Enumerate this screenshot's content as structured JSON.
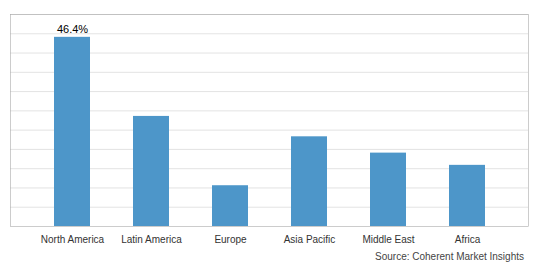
{
  "chart_data": {
    "type": "bar",
    "categories": [
      "North America",
      "Latin America",
      "Europe",
      "Asia Pacific",
      "Middle East",
      "Africa"
    ],
    "values": [
      46.4,
      27.0,
      10.0,
      22.0,
      18.0,
      15.0
    ],
    "color": "#4d96c9",
    "ylim": [
      0,
      52
    ],
    "yticks": [
      4.727272727272727,
      9.454545454545455,
      14.181818181818182,
      18.90909090909091,
      23.636363636363637,
      28.363636363636363,
      33.09090909090909,
      37.81818181818182,
      42.54545454545455,
      47.27272727272727,
      52
    ],
    "grid": true,
    "tick_labels": "x",
    "annotations": [
      {
        "text": "46.4%",
        "x": "North America",
        "y": 46.4
      }
    ],
    "caption": "Source: Coherent Market Insights"
  }
}
